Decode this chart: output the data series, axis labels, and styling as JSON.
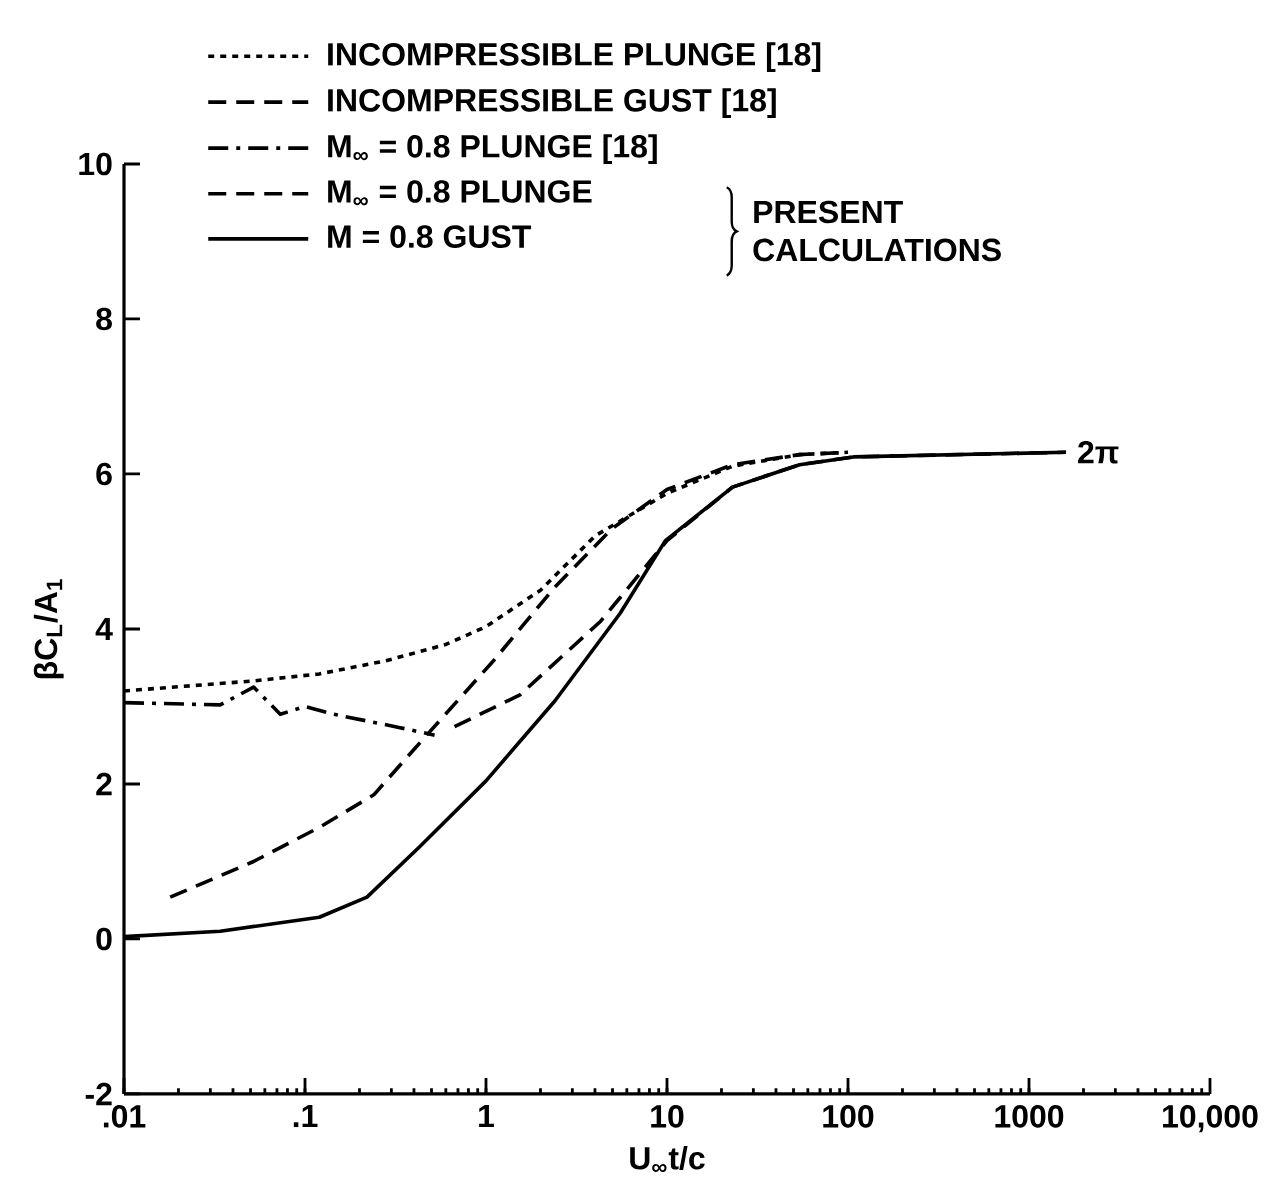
{
  "chart_data": {
    "type": "line",
    "xlabel": "U$_{∞}$t/c",
    "ylabel": "βC$_{L}$/A$_{1}$",
    "log": "x",
    "legend": "top left",
    "grid": false,
    "xlim": [
      0.01,
      10000
    ],
    "ylim": [
      -2,
      10
    ],
    "xticks": [
      {
        "value": 0.01,
        "label": ".01"
      },
      {
        "value": 0.1,
        "label": ".1"
      },
      {
        "value": 1,
        "label": "1"
      },
      {
        "value": 10,
        "label": "10"
      },
      {
        "value": 100,
        "label": "100"
      },
      {
        "value": 1000,
        "label": "1000"
      },
      {
        "value": 10000,
        "label": "10,000"
      }
    ],
    "yticks": [
      -2,
      0,
      2,
      4,
      6,
      8,
      10
    ],
    "series": [
      {
        "name": "INCOMPRESSIBLE PLUNGE [18]",
        "color": "#000000",
        "line_style": "dotted",
        "x": [
          0.01,
          0.052,
          0.12,
          0.28,
          0.6,
          1.0,
          2.0,
          4.0,
          10,
          23,
          54,
          100
        ],
        "values": [
          3.2,
          3.33,
          3.42,
          3.59,
          3.8,
          4.03,
          4.5,
          5.2,
          5.75,
          6.1,
          6.25,
          6.28
        ]
      },
      {
        "name": "INCOMPRESSIBLE GUST [18]",
        "color": "#000000",
        "line_style": "dashed",
        "x": [
          0.018,
          0.052,
          0.12,
          0.24,
          0.47,
          1.1,
          2.4,
          5.0,
          10,
          23,
          54,
          100
        ],
        "values": [
          0.54,
          1.0,
          1.44,
          1.86,
          2.63,
          3.59,
          4.54,
          5.3,
          5.8,
          6.12,
          6.25,
          6.28
        ]
      },
      {
        "name": "M$_{∞}$ = 0.8 PLUNGE [18]",
        "color": "#000000",
        "line_style": "dashdot",
        "x": [
          0.01,
          0.034,
          0.052,
          0.073,
          0.1,
          0.144,
          0.33,
          0.52
        ],
        "values": [
          3.05,
          3.02,
          3.25,
          2.9,
          3.0,
          2.9,
          2.73,
          2.63
        ]
      },
      {
        "name": "M$_{∞}$ = 0.8 PLUNGE",
        "color": "#000000",
        "line_style": "dashed",
        "x": [
          0.67,
          1.54,
          4.3,
          10,
          23,
          54,
          107,
          1600
        ],
        "values": [
          2.74,
          3.15,
          4.1,
          5.14,
          5.83,
          6.12,
          6.22,
          6.28
        ]
      },
      {
        "name": "M = 0.8 GUST",
        "color": "#000000",
        "line_style": "solid",
        "x": [
          0.01,
          0.034,
          0.12,
          0.22,
          0.43,
          1.0,
          2.4,
          5.5,
          9.8,
          23,
          54,
          107,
          1600
        ],
        "values": [
          0.03,
          0.1,
          0.28,
          0.54,
          1.19,
          2.04,
          3.07,
          4.2,
          5.14,
          5.83,
          6.12,
          6.22,
          6.28
        ]
      }
    ],
    "annotations": [
      "PRESENT CALCULATIONS",
      {
        "text": "2π",
        "x": 1600,
        "y": 6.28
      }
    ]
  }
}
